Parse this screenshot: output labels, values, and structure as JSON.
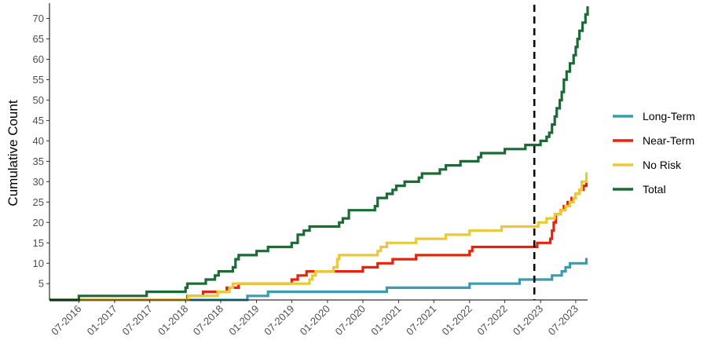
{
  "chart_data": {
    "type": "line",
    "title": "",
    "xlabel": "",
    "ylabel": "Cumulative Count",
    "step": true,
    "x_domain": [
      "2016-02-01",
      "2023-08-31"
    ],
    "ylim": [
      1,
      73
    ],
    "y_ticks": [
      5,
      10,
      15,
      20,
      25,
      30,
      35,
      40,
      45,
      50,
      55,
      60,
      65,
      70
    ],
    "x_ticks": [
      {
        "date": "2016-07-01",
        "label": "07-2016"
      },
      {
        "date": "2017-01-01",
        "label": "01-2017"
      },
      {
        "date": "2017-07-01",
        "label": "07-2017"
      },
      {
        "date": "2018-01-01",
        "label": "01-2018"
      },
      {
        "date": "2018-07-01",
        "label": "07-2018"
      },
      {
        "date": "2019-01-01",
        "label": "01-2019"
      },
      {
        "date": "2019-07-01",
        "label": "07-2019"
      },
      {
        "date": "2020-01-01",
        "label": "01-2020"
      },
      {
        "date": "2020-07-01",
        "label": "07-2020"
      },
      {
        "date": "2021-01-01",
        "label": "01-2021"
      },
      {
        "date": "2021-07-01",
        "label": "07-2021"
      },
      {
        "date": "2022-01-01",
        "label": "01-2022"
      },
      {
        "date": "2022-07-01",
        "label": "07-2022"
      },
      {
        "date": "2023-01-01",
        "label": "01-2023"
      },
      {
        "date": "2023-07-01",
        "label": "07-2023"
      }
    ],
    "vline": {
      "date": "2022-11-30",
      "style": "dashed",
      "color": "#000000"
    },
    "grid": false,
    "legend": "right",
    "series": [
      {
        "name": "Long-Term",
        "color": "#3d9bb0",
        "points": [
          [
            "2016-02-01",
            1
          ],
          [
            "2018-11-15",
            2
          ],
          [
            "2019-03-01",
            3
          ],
          [
            "2020-11-01",
            4
          ],
          [
            "2022-01-01",
            5
          ],
          [
            "2022-09-15",
            6
          ],
          [
            "2023-03-01",
            7
          ],
          [
            "2023-04-20",
            8
          ],
          [
            "2023-05-10",
            9
          ],
          [
            "2023-06-01",
            10
          ],
          [
            "2023-08-25",
            11
          ],
          [
            "2023-08-31",
            11
          ]
        ]
      },
      {
        "name": "Near-Term",
        "color": "#e8230a",
        "points": [
          [
            "2016-02-01",
            1
          ],
          [
            "2018-01-10",
            2
          ],
          [
            "2018-04-01",
            3
          ],
          [
            "2018-08-01",
            4
          ],
          [
            "2018-10-01",
            5
          ],
          [
            "2019-07-01",
            6
          ],
          [
            "2019-08-01",
            7
          ],
          [
            "2019-09-15",
            8
          ],
          [
            "2020-07-01",
            9
          ],
          [
            "2020-09-15",
            10
          ],
          [
            "2020-12-01",
            11
          ],
          [
            "2021-04-01",
            12
          ],
          [
            "2022-01-01",
            13
          ],
          [
            "2022-01-15",
            14
          ],
          [
            "2022-12-15",
            15
          ],
          [
            "2023-02-20",
            16
          ],
          [
            "2023-03-01",
            18
          ],
          [
            "2023-03-10",
            20
          ],
          [
            "2023-03-20",
            22
          ],
          [
            "2023-04-15",
            23
          ],
          [
            "2023-05-01",
            24
          ],
          [
            "2023-05-20",
            25
          ],
          [
            "2023-06-10",
            26
          ],
          [
            "2023-07-01",
            27
          ],
          [
            "2023-07-20",
            28
          ],
          [
            "2023-08-10",
            29
          ],
          [
            "2023-08-25",
            30
          ],
          [
            "2023-08-31",
            30
          ]
        ]
      },
      {
        "name": "No Risk",
        "color": "#e9c935",
        "points": [
          [
            "2016-02-01",
            1
          ],
          [
            "2018-01-15",
            2
          ],
          [
            "2018-06-15",
            3
          ],
          [
            "2018-08-15",
            4
          ],
          [
            "2018-09-01",
            5
          ],
          [
            "2019-10-01",
            6
          ],
          [
            "2019-10-15",
            7
          ],
          [
            "2019-11-01",
            8
          ],
          [
            "2020-02-01",
            9
          ],
          [
            "2020-02-20",
            11
          ],
          [
            "2020-03-01",
            12
          ],
          [
            "2020-09-15",
            13
          ],
          [
            "2020-10-01",
            14
          ],
          [
            "2020-11-01",
            15
          ],
          [
            "2021-04-01",
            16
          ],
          [
            "2021-09-01",
            17
          ],
          [
            "2022-01-01",
            18
          ],
          [
            "2022-06-15",
            19
          ],
          [
            "2022-12-20",
            20
          ],
          [
            "2023-02-01",
            21
          ],
          [
            "2023-03-15",
            22
          ],
          [
            "2023-04-15",
            23
          ],
          [
            "2023-05-10",
            24
          ],
          [
            "2023-06-01",
            25
          ],
          [
            "2023-06-20",
            26
          ],
          [
            "2023-07-01",
            27
          ],
          [
            "2023-07-20",
            28
          ],
          [
            "2023-08-01",
            30
          ],
          [
            "2023-08-25",
            32
          ],
          [
            "2023-08-31",
            32
          ]
        ]
      },
      {
        "name": "Total",
        "color": "#1b6b36",
        "points": [
          [
            "2016-02-01",
            1
          ],
          [
            "2016-07-01",
            2
          ],
          [
            "2017-06-15",
            3
          ],
          [
            "2018-01-01",
            4
          ],
          [
            "2018-01-10",
            5
          ],
          [
            "2018-04-15",
            6
          ],
          [
            "2018-06-01",
            7
          ],
          [
            "2018-06-20",
            8
          ],
          [
            "2018-09-01",
            9
          ],
          [
            "2018-09-15",
            11
          ],
          [
            "2018-10-01",
            12
          ],
          [
            "2019-01-01",
            13
          ],
          [
            "2019-03-01",
            14
          ],
          [
            "2019-07-01",
            15
          ],
          [
            "2019-08-01",
            17
          ],
          [
            "2019-09-01",
            18
          ],
          [
            "2019-10-01",
            19
          ],
          [
            "2020-03-01",
            20
          ],
          [
            "2020-03-20",
            21
          ],
          [
            "2020-04-20",
            23
          ],
          [
            "2020-09-01",
            24
          ],
          [
            "2020-09-15",
            26
          ],
          [
            "2020-11-01",
            27
          ],
          [
            "2020-12-01",
            28
          ],
          [
            "2020-12-20",
            29
          ],
          [
            "2021-02-01",
            30
          ],
          [
            "2021-04-15",
            31
          ],
          [
            "2021-05-01",
            32
          ],
          [
            "2021-08-01",
            33
          ],
          [
            "2021-09-01",
            34
          ],
          [
            "2021-11-15",
            35
          ],
          [
            "2022-02-15",
            36
          ],
          [
            "2022-03-01",
            37
          ],
          [
            "2022-07-01",
            38
          ],
          [
            "2022-10-15",
            39
          ],
          [
            "2023-01-01",
            40
          ],
          [
            "2023-02-01",
            41
          ],
          [
            "2023-02-15",
            42
          ],
          [
            "2023-03-01",
            44
          ],
          [
            "2023-03-15",
            46
          ],
          [
            "2023-03-25",
            48
          ],
          [
            "2023-04-10",
            50
          ],
          [
            "2023-04-20",
            52
          ],
          [
            "2023-05-01",
            55
          ],
          [
            "2023-05-15",
            57
          ],
          [
            "2023-06-01",
            59
          ],
          [
            "2023-06-20",
            61
          ],
          [
            "2023-07-01",
            63
          ],
          [
            "2023-07-10",
            65
          ],
          [
            "2023-07-20",
            67
          ],
          [
            "2023-08-05",
            69
          ],
          [
            "2023-08-20",
            71
          ],
          [
            "2023-08-31",
            73
          ]
        ]
      }
    ]
  }
}
